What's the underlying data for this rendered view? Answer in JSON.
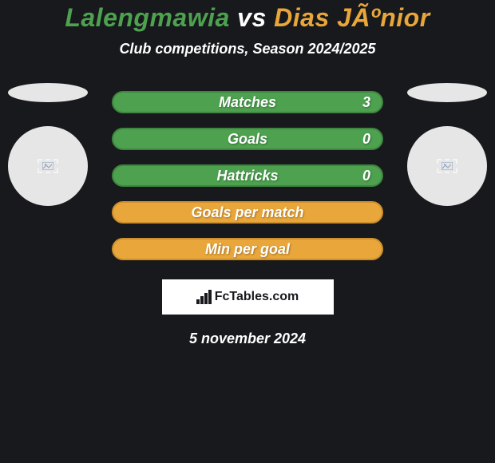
{
  "title": {
    "player1": "Lalengmawia",
    "vs": "vs",
    "player2": "Dias JÃºnior",
    "player1_color": "#4da14f",
    "vs_color": "#ffffff",
    "player2_color": "#e9a63a"
  },
  "subtitle": "Club competitions, Season 2024/2025",
  "player_left": {
    "ellipse_color": "#e6e6e6",
    "circle_color": "#e6e6e6",
    "badge_tint": "#5d6d88"
  },
  "player_right": {
    "ellipse_color": "#e6e6e6",
    "circle_color": "#e6e6e6",
    "badge_tint": "#5d6d88"
  },
  "bars": [
    {
      "label": "Matches",
      "value": "3",
      "bg": "#4da14f",
      "border": "#3e8640"
    },
    {
      "label": "Goals",
      "value": "0",
      "bg": "#4da14f",
      "border": "#3e8640"
    },
    {
      "label": "Hattricks",
      "value": "0",
      "bg": "#4da14f",
      "border": "#3e8640"
    },
    {
      "label": "Goals per match",
      "value": "",
      "bg": "#e9a63a",
      "border": "#cc8f2e"
    },
    {
      "label": "Min per goal",
      "value": "",
      "bg": "#e9a63a",
      "border": "#cc8f2e"
    }
  ],
  "logo": {
    "text": "FcTables.com",
    "bg": "#ffffff",
    "text_color": "#17191c"
  },
  "date": "5 november 2024",
  "background_color": "#17191c"
}
